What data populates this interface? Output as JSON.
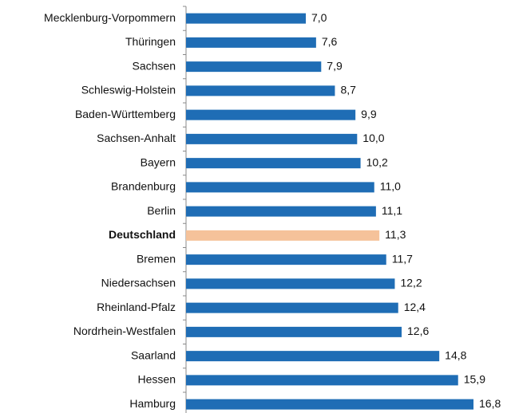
{
  "chart_data": {
    "type": "hbar",
    "categories": [
      "Mecklenburg-Vorpommern",
      "Thüringen",
      "Sachsen",
      "Schleswig-Holstein",
      "Baden-Württemberg",
      "Sachsen-Anhalt",
      "Bayern",
      "Brandenburg",
      "Berlin",
      "Deutschland",
      "Bremen",
      "Niedersachsen",
      "Rheinland-Pfalz",
      "Nordrhein-Westfalen",
      "Saarland",
      "Hessen",
      "Hamburg"
    ],
    "values": [
      7.0,
      7.6,
      7.9,
      8.7,
      9.9,
      10.0,
      10.2,
      11.0,
      11.1,
      11.3,
      11.7,
      12.2,
      12.4,
      12.6,
      14.8,
      15.9,
      16.8
    ],
    "value_labels": [
      "7,0",
      "7,6",
      "7,9",
      "8,7",
      "9,9",
      "10,0",
      "10,2",
      "11,0",
      "11,1",
      "11,3",
      "11,7",
      "12,2",
      "12,4",
      "12,6",
      "14,8",
      "15,9",
      "16,8"
    ],
    "colors": [
      "#1f6db5",
      "#1f6db5",
      "#1f6db5",
      "#1f6db5",
      "#1f6db5",
      "#1f6db5",
      "#1f6db5",
      "#1f6db5",
      "#1f6db5",
      "#f5c29a",
      "#1f6db5",
      "#1f6db5",
      "#1f6db5",
      "#1f6db5",
      "#1f6db5",
      "#1f6db5",
      "#1f6db5"
    ]
  }
}
